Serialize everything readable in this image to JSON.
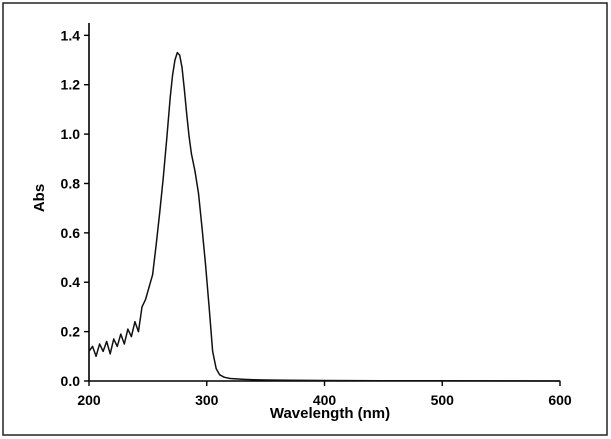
{
  "chart_data": {
    "type": "line",
    "title": "",
    "xlabel": "Wavelength (nm)",
    "ylabel": "Abs",
    "xlim": [
      200,
      600
    ],
    "ylim": [
      0,
      1.45
    ],
    "grid": false,
    "x_ticks": [
      200,
      300,
      400,
      500,
      600
    ],
    "x_tick_labels": [
      "200",
      "300",
      "400",
      "500",
      "600"
    ],
    "y_ticks": [
      0.0,
      0.2,
      0.4,
      0.6,
      0.8,
      1.0,
      1.2,
      1.4
    ],
    "y_tick_labels": [
      "0.0",
      "0.2",
      "0.4",
      "0.6",
      "0.8",
      "1.0",
      "1.2",
      "1.4"
    ],
    "colors": {
      "line": "#111111",
      "axis": "#000000",
      "frame": "#222222"
    },
    "series": [
      {
        "x": [
          200,
          203,
          206,
          209,
          212,
          215,
          218,
          221,
          224,
          227,
          230,
          233,
          236,
          239,
          242,
          245,
          248,
          251,
          254,
          257,
          260,
          263,
          266,
          269,
          271,
          273,
          275,
          277,
          279,
          281,
          283,
          285,
          287,
          290,
          293,
          296,
          299,
          302,
          305,
          308,
          311,
          315,
          320,
          330,
          340,
          350,
          370,
          400,
          450,
          500,
          550,
          600
        ],
        "y": [
          0.12,
          0.14,
          0.1,
          0.15,
          0.12,
          0.16,
          0.11,
          0.17,
          0.14,
          0.19,
          0.15,
          0.21,
          0.18,
          0.24,
          0.2,
          0.3,
          0.33,
          0.38,
          0.43,
          0.55,
          0.68,
          0.82,
          0.98,
          1.15,
          1.24,
          1.3,
          1.33,
          1.32,
          1.27,
          1.18,
          1.08,
          0.99,
          0.92,
          0.85,
          0.76,
          0.62,
          0.47,
          0.3,
          0.12,
          0.05,
          0.025,
          0.015,
          0.01,
          0.007,
          0.005,
          0.004,
          0.003,
          0.002,
          0.001,
          0.001,
          0.0005,
          0.0
        ]
      }
    ]
  }
}
